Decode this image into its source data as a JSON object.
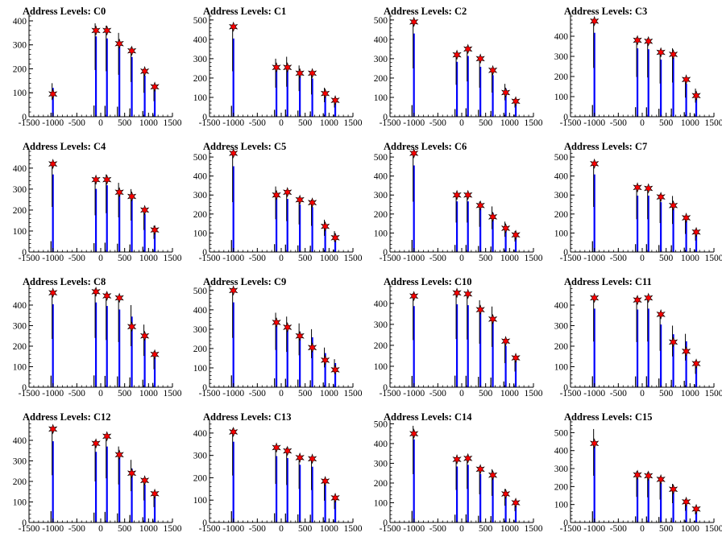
{
  "chart_data": [
    {
      "type": "bar",
      "title": "Address Levels: C0",
      "xlim": [
        -1500,
        1500
      ],
      "ylim": [
        0,
        420
      ],
      "x_ticks": [
        -1500,
        -1000,
        -500,
        0,
        500,
        1000,
        1500
      ],
      "y_ticks": [
        0,
        100,
        200,
        300,
        400
      ],
      "x_tick_labels": [
        "-1500",
        "-1000",
        "-500",
        "0",
        "500",
        "1000",
        "1500"
      ],
      "y_tick_labels": [
        "0",
        "100",
        "200",
        "300",
        "400"
      ],
      "x": [
        -1000,
        -100,
        130,
        390,
        650,
        920,
        1130
      ],
      "values": [
        140,
        390,
        380,
        350,
        290,
        200,
        130
      ],
      "peak_markers": [
        95,
        360,
        360,
        305,
        275,
        190,
        125
      ]
    },
    {
      "type": "bar",
      "title": "Address Levels: C1",
      "xlim": [
        -1500,
        1500
      ],
      "ylim": [
        0,
        520
      ],
      "x_ticks": [
        -1500,
        -1000,
        -500,
        0,
        500,
        1000,
        1500
      ],
      "y_ticks": [
        0,
        100,
        200,
        300,
        400,
        500
      ],
      "x_tick_labels": [
        "-1500",
        "-1000",
        "-500",
        "0",
        "500",
        "1000",
        "1500"
      ],
      "y_tick_labels": [
        "0",
        "100",
        "200",
        "300",
        "400",
        "500"
      ],
      "x": [
        -1000,
        -100,
        130,
        390,
        650,
        920,
        1130
      ],
      "values": [
        470,
        300,
        310,
        265,
        230,
        150,
        95
      ],
      "peak_markers": [
        465,
        255,
        255,
        225,
        225,
        120,
        85
      ]
    },
    {
      "type": "bar",
      "title": "Address Levels: C2",
      "xlim": [
        -1500,
        1500
      ],
      "ylim": [
        0,
        520
      ],
      "x_ticks": [
        -1500,
        -1000,
        -500,
        0,
        500,
        1000,
        1500
      ],
      "y_ticks": [
        0,
        100,
        200,
        300,
        400,
        500
      ],
      "x_tick_labels": [
        "-1500",
        "-1000",
        "-500",
        "0",
        "500",
        "1000",
        "1500"
      ],
      "y_tick_labels": [
        "0",
        "100",
        "200",
        "300",
        "400",
        "500"
      ],
      "x": [
        -1000,
        -100,
        130,
        390,
        650,
        920,
        1130
      ],
      "values": [
        500,
        330,
        365,
        300,
        250,
        170,
        95
      ],
      "peak_markers": [
        490,
        320,
        350,
        300,
        240,
        125,
        80
      ]
    },
    {
      "type": "bar",
      "title": "Address Levels: C3",
      "xlim": [
        -1500,
        1500
      ],
      "ylim": [
        0,
        500
      ],
      "x_ticks": [
        -1500,
        -1000,
        -500,
        0,
        500,
        1000,
        1500
      ],
      "y_ticks": [
        0,
        100,
        200,
        300,
        400
      ],
      "x_tick_labels": [
        "-1500",
        "-1000",
        "-500",
        "0",
        "500",
        "1000",
        "1500"
      ],
      "y_tick_labels": [
        "0",
        "100",
        "200",
        "300",
        "400"
      ],
      "x": [
        -1000,
        -100,
        130,
        390,
        650,
        920,
        1130
      ],
      "values": [
        485,
        395,
        390,
        330,
        340,
        190,
        140
      ],
      "peak_markers": [
        475,
        380,
        375,
        320,
        310,
        185,
        105
      ]
    },
    {
      "type": "bar",
      "title": "Address Levels: C4",
      "xlim": [
        -1500,
        1500
      ],
      "ylim": [
        0,
        480
      ],
      "x_ticks": [
        -1500,
        -1000,
        -500,
        0,
        500,
        1000,
        1500
      ],
      "y_ticks": [
        0,
        100,
        200,
        300,
        400
      ],
      "x_tick_labels": [
        "-1500",
        "-1000",
        "-500",
        "0",
        "500",
        "1000",
        "1500"
      ],
      "y_tick_labels": [
        "0",
        "100",
        "200",
        "300",
        "400"
      ],
      "x": [
        -1000,
        -100,
        130,
        390,
        650,
        920,
        1130
      ],
      "values": [
        430,
        350,
        370,
        330,
        300,
        210,
        125
      ],
      "peak_markers": [
        420,
        345,
        345,
        285,
        265,
        200,
        105
      ]
    },
    {
      "type": "bar",
      "title": "Address Levels: C5",
      "xlim": [
        -1500,
        1500
      ],
      "ylim": [
        0,
        530
      ],
      "x_ticks": [
        -1500,
        -1000,
        -500,
        0,
        500,
        1000,
        1500
      ],
      "y_ticks": [
        0,
        100,
        200,
        300,
        400,
        500
      ],
      "x_tick_labels": [
        "-1500",
        "-1000",
        "-500",
        "0",
        "500",
        "1000",
        "1500"
      ],
      "y_tick_labels": [
        "0",
        "100",
        "200",
        "300",
        "400",
        "500"
      ],
      "x": [
        -1000,
        -100,
        130,
        390,
        650,
        920,
        1130
      ],
      "values": [
        525,
        345,
        325,
        290,
        275,
        170,
        110
      ],
      "peak_markers": [
        520,
        300,
        315,
        275,
        260,
        135,
        75
      ]
    },
    {
      "type": "bar",
      "title": "Address Levels: C6",
      "xlim": [
        -1500,
        1500
      ],
      "ylim": [
        0,
        530
      ],
      "x_ticks": [
        -1500,
        -1000,
        -500,
        0,
        500,
        1000,
        1500
      ],
      "y_ticks": [
        0,
        100,
        200,
        300,
        400,
        500
      ],
      "x_tick_labels": [
        "-1500",
        "-1000",
        "-500",
        "0",
        "500",
        "1000",
        "1500"
      ],
      "y_tick_labels": [
        "0",
        "100",
        "200",
        "300",
        "400",
        "500"
      ],
      "x": [
        -1000,
        -100,
        130,
        390,
        650,
        920,
        1130
      ],
      "values": [
        530,
        310,
        310,
        265,
        240,
        160,
        110
      ],
      "peak_markers": [
        520,
        300,
        300,
        245,
        185,
        125,
        90
      ]
    },
    {
      "type": "bar",
      "title": "Address Levels: C7",
      "xlim": [
        -1500,
        1500
      ],
      "ylim": [
        0,
        530
      ],
      "x_ticks": [
        -1500,
        -1000,
        -500,
        0,
        500,
        1000,
        1500
      ],
      "y_ticks": [
        0,
        100,
        200,
        300,
        400,
        500
      ],
      "x_tick_labels": [
        "-1500",
        "-1000",
        "-500",
        "0",
        "500",
        "1000",
        "1500"
      ],
      "y_tick_labels": [
        "0",
        "100",
        "200",
        "300",
        "400",
        "500"
      ],
      "x": [
        -1000,
        -100,
        130,
        390,
        650,
        920,
        1130
      ],
      "values": [
        475,
        345,
        345,
        305,
        295,
        190,
        120
      ],
      "peak_markers": [
        465,
        340,
        335,
        290,
        245,
        180,
        105
      ]
    },
    {
      "type": "bar",
      "title": "Address Levels: C8",
      "xlim": [
        -1500,
        1500
      ],
      "ylim": [
        0,
        490
      ],
      "x_ticks": [
        -1500,
        -1000,
        -500,
        0,
        500,
        1000,
        1500
      ],
      "y_ticks": [
        0,
        100,
        200,
        300,
        400
      ],
      "x_tick_labels": [
        "-1500",
        "-1000",
        "-500",
        "0",
        "500",
        "1000",
        "1500"
      ],
      "y_tick_labels": [
        "0",
        "100",
        "200",
        "300",
        "400"
      ],
      "x": [
        -1000,
        -100,
        130,
        390,
        650,
        920,
        1130
      ],
      "values": [
        470,
        480,
        460,
        440,
        400,
        305,
        175
      ],
      "peak_markers": [
        460,
        465,
        445,
        435,
        295,
        250,
        160
      ]
    },
    {
      "type": "bar",
      "title": "Address Levels: C9",
      "xlim": [
        -1500,
        1500
      ],
      "ylim": [
        0,
        520
      ],
      "x_ticks": [
        -1500,
        -1000,
        -500,
        0,
        500,
        1000,
        1500
      ],
      "y_ticks": [
        0,
        100,
        200,
        300,
        400,
        500
      ],
      "x_tick_labels": [
        "-1500",
        "-1000",
        "-500",
        "0",
        "500",
        "1000",
        "1500"
      ],
      "y_tick_labels": [
        "0",
        "100",
        "200",
        "300",
        "400",
        "500"
      ],
      "x": [
        -1000,
        -100,
        130,
        390,
        650,
        920,
        1130
      ],
      "values": [
        510,
        385,
        365,
        330,
        300,
        205,
        145
      ],
      "peak_markers": [
        500,
        335,
        310,
        265,
        205,
        140,
        90
      ]
    },
    {
      "type": "bar",
      "title": "Address Levels: C10",
      "xlim": [
        -1500,
        1500
      ],
      "ylim": [
        0,
        480
      ],
      "x_ticks": [
        -1500,
        -1000,
        -500,
        0,
        500,
        1000,
        1500
      ],
      "y_ticks": [
        0,
        100,
        200,
        300,
        400
      ],
      "x_tick_labels": [
        "-1500",
        "-1000",
        "-500",
        "0",
        "500",
        "1000",
        "1500"
      ],
      "y_tick_labels": [
        "0",
        "100",
        "200",
        "300",
        "400"
      ],
      "x": [
        -1000,
        -100,
        130,
        390,
        650,
        920,
        1130
      ],
      "values": [
        450,
        460,
        455,
        415,
        385,
        230,
        150
      ],
      "peak_markers": [
        435,
        450,
        445,
        370,
        325,
        220,
        140
      ]
    },
    {
      "type": "bar",
      "title": "Address Levels: C11",
      "xlim": [
        -1500,
        1500
      ],
      "ylim": [
        0,
        490
      ],
      "x_ticks": [
        -1500,
        -1000,
        -500,
        0,
        500,
        1000,
        1500
      ],
      "y_ticks": [
        0,
        100,
        200,
        300,
        400
      ],
      "x_tick_labels": [
        "-1500",
        "-1000",
        "-500",
        "0",
        "500",
        "1000",
        "1500"
      ],
      "y_tick_labels": [
        "0",
        "100",
        "200",
        "300",
        "400"
      ],
      "x": [
        -1000,
        -100,
        130,
        390,
        650,
        920,
        1130
      ],
      "values": [
        445,
        440,
        445,
        355,
        300,
        260,
        130
      ],
      "peak_markers": [
        435,
        425,
        435,
        355,
        220,
        175,
        115
      ]
    },
    {
      "type": "bar",
      "title": "Address Levels: C12",
      "xlim": [
        -1500,
        1500
      ],
      "ylim": [
        0,
        490
      ],
      "x_ticks": [
        -1500,
        -1000,
        -500,
        0,
        500,
        1000,
        1500
      ],
      "y_ticks": [
        0,
        100,
        200,
        300,
        400
      ],
      "x_tick_labels": [
        "-1500",
        "-1000",
        "-500",
        "0",
        "500",
        "1000",
        "1500"
      ],
      "y_tick_labels": [
        "0",
        "100",
        "200",
        "300",
        "400"
      ],
      "x": [
        -1000,
        -100,
        130,
        390,
        650,
        920,
        1130
      ],
      "values": [
        460,
        400,
        430,
        370,
        305,
        215,
        150
      ],
      "peak_markers": [
        455,
        385,
        420,
        330,
        240,
        205,
        140
      ]
    },
    {
      "type": "bar",
      "title": "Address Levels: C13",
      "xlim": [
        -1500,
        1500
      ],
      "ylim": [
        0,
        450
      ],
      "x_ticks": [
        -1500,
        -1000,
        -500,
        0,
        500,
        1000,
        1500
      ],
      "y_ticks": [
        0,
        100,
        200,
        300,
        400
      ],
      "x_tick_labels": [
        "-1500",
        "-1000",
        "-500",
        "0",
        "500",
        "1000",
        "1500"
      ],
      "y_tick_labels": [
        "0",
        "100",
        "200",
        "300",
        "400"
      ],
      "x": [
        -1000,
        -100,
        130,
        390,
        650,
        920,
        1130
      ],
      "values": [
        420,
        345,
        335,
        300,
        290,
        195,
        120
      ],
      "peak_markers": [
        405,
        335,
        320,
        290,
        285,
        185,
        110
      ]
    },
    {
      "type": "bar",
      "title": "Address Levels: C14",
      "xlim": [
        -1500,
        1500
      ],
      "ylim": [
        0,
        510
      ],
      "x_ticks": [
        -1500,
        -1000,
        -500,
        0,
        500,
        1000,
        1500
      ],
      "y_ticks": [
        0,
        100,
        200,
        300,
        400,
        500
      ],
      "x_tick_labels": [
        "-1500",
        "-1000",
        "-500",
        "0",
        "500",
        "1000",
        "1500"
      ],
      "y_tick_labels": [
        "0",
        "100",
        "200",
        "300",
        "400",
        "500"
      ],
      "x": [
        -1000,
        -100,
        130,
        390,
        650,
        920,
        1130
      ],
      "values": [
        490,
        330,
        340,
        285,
        270,
        170,
        115
      ],
      "peak_markers": [
        450,
        320,
        325,
        270,
        240,
        145,
        100
      ]
    },
    {
      "type": "bar",
      "title": "Address Levels: C15",
      "xlim": [
        -1500,
        1500
      ],
      "ylim": [
        0,
        560
      ],
      "x_ticks": [
        -1500,
        -1000,
        -500,
        0,
        500,
        1000,
        1500
      ],
      "y_ticks": [
        0,
        100,
        200,
        300,
        400,
        500
      ],
      "x_tick_labels": [
        "-1500",
        "-1000",
        "-500",
        "0",
        "500",
        "1000",
        "1500"
      ],
      "y_tick_labels": [
        "0",
        "100",
        "200",
        "300",
        "400",
        "500"
      ],
      "x": [
        -1000,
        -100,
        130,
        390,
        650,
        920,
        1130
      ],
      "values": [
        520,
        285,
        280,
        255,
        215,
        130,
        90
      ],
      "peak_markers": [
        440,
        265,
        260,
        240,
        185,
        115,
        75
      ]
    }
  ],
  "colors": {
    "bar": "#0000ff",
    "bar_spike": "#000000",
    "marker_fill": "#ff0000",
    "marker_stroke": "#000000",
    "axis": "#000000"
  }
}
